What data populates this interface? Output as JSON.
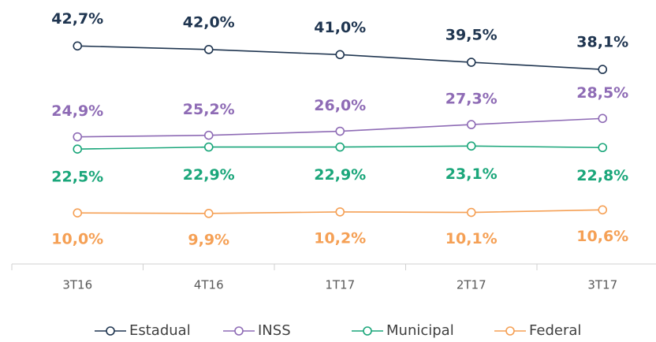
{
  "chart_data": {
    "type": "line",
    "categories": [
      "3T16",
      "4T16",
      "1T17",
      "2T17",
      "3T17"
    ],
    "ylim": [
      0,
      50
    ],
    "series": [
      {
        "name": "Estadual",
        "color": "#1f3550",
        "values": [
          42.7,
          42.0,
          41.0,
          39.5,
          38.1
        ],
        "value_labels": [
          "42,7%",
          "42,0%",
          "41,0%",
          "39,5%",
          "38,1%"
        ]
      },
      {
        "name": "INSS",
        "color": "#8e6bb5",
        "values": [
          24.9,
          25.2,
          26.0,
          27.3,
          28.5
        ],
        "value_labels": [
          "24,9%",
          "25,2%",
          "26,0%",
          "27,3%",
          "28,5%"
        ]
      },
      {
        "name": "Municipal",
        "color": "#1aa67a",
        "values": [
          22.5,
          22.9,
          22.9,
          23.1,
          22.8
        ],
        "value_labels": [
          "22,5%",
          "22,9%",
          "22,9%",
          "23,1%",
          "22,8%"
        ]
      },
      {
        "name": "Federal",
        "color": "#f5a055",
        "values": [
          10.0,
          9.9,
          10.2,
          10.1,
          10.6
        ],
        "value_labels": [
          "10,0%",
          "9,9%",
          "10,2%",
          "10,1%",
          "10,6%"
        ]
      }
    ]
  }
}
